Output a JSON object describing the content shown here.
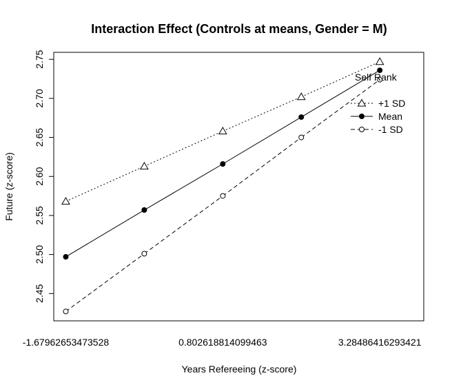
{
  "chart_data": {
    "type": "line",
    "title": "Interaction Effect (Controls at means, Gender = M)",
    "xlabel": "Years Refereeing (z-score)",
    "ylabel": "Future (z-score)",
    "x": [
      -1.67962653473528,
      -0.438503860318,
      0.802618814099463,
      2.043741488516837,
      3.28486416293421
    ],
    "x_tick_values": [
      -1.67962653473528,
      0.802618814099463,
      3.28486416293421
    ],
    "x_tick_labels": [
      "-1.67962653473528",
      "0.802618814099463",
      "3.28486416293421"
    ],
    "xlim": [
      -1.87,
      3.98
    ],
    "y_tick_values": [
      2.45,
      2.5,
      2.55,
      2.6,
      2.65,
      2.7,
      2.75
    ],
    "y_tick_labels": [
      "2.45",
      "2.50",
      "2.55",
      "2.60",
      "2.65",
      "2.70",
      "2.75"
    ],
    "ylim": [
      2.415,
      2.759
    ],
    "grid": false,
    "legend": {
      "title": "Self Rank",
      "position": "top-right"
    },
    "series": [
      {
        "name": "+1 SD",
        "values": [
          2.568,
          2.613,
          2.658,
          2.702,
          2.747
        ],
        "line_style": "dotted",
        "marker": "triangle-open"
      },
      {
        "name": "Mean",
        "values": [
          2.497,
          2.557,
          2.616,
          2.676,
          2.736
        ],
        "line_style": "solid",
        "marker": "circle-filled"
      },
      {
        "name": "-1 SD",
        "values": [
          2.427,
          2.501,
          2.575,
          2.65,
          2.724
        ],
        "line_style": "dashed",
        "marker": "circle-open"
      }
    ]
  }
}
